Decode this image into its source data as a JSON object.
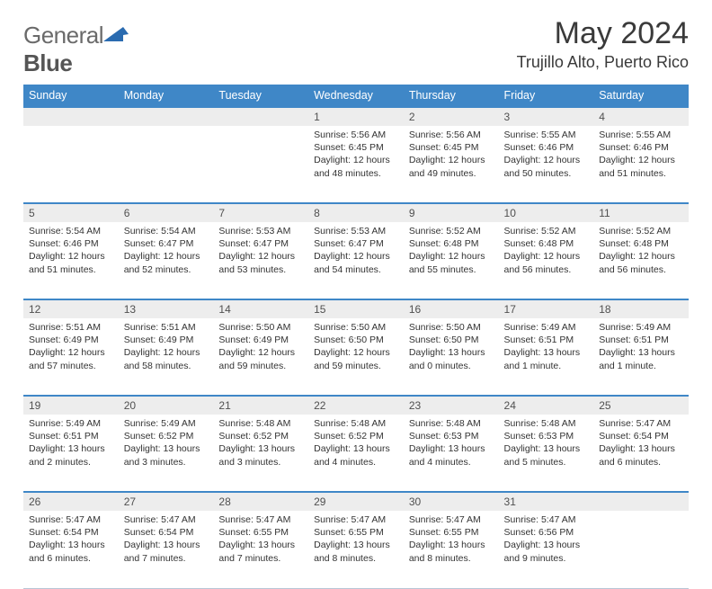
{
  "brand": {
    "word1": "General",
    "word2": "Blue"
  },
  "title": "May 2024",
  "location": "Trujillo Alto, Puerto Rico",
  "colors": {
    "header_bg": "#3f87c7",
    "daynum_bg": "#ededed",
    "rule": "#3f87c7",
    "logo_tri": "#2a6bb0",
    "text": "#333333",
    "bg": "#ffffff"
  },
  "typography": {
    "title_fontsize": 34,
    "location_fontsize": 18,
    "weekday_fontsize": 12.5,
    "cell_fontsize": 10.5,
    "daynum_fontsize": 12
  },
  "weekdays": [
    "Sunday",
    "Monday",
    "Tuesday",
    "Wednesday",
    "Thursday",
    "Friday",
    "Saturday"
  ],
  "weeks": [
    [
      null,
      null,
      null,
      {
        "n": "1",
        "sr": "5:56 AM",
        "ss": "6:45 PM",
        "dl": "12 hours and 48 minutes."
      },
      {
        "n": "2",
        "sr": "5:56 AM",
        "ss": "6:45 PM",
        "dl": "12 hours and 49 minutes."
      },
      {
        "n": "3",
        "sr": "5:55 AM",
        "ss": "6:46 PM",
        "dl": "12 hours and 50 minutes."
      },
      {
        "n": "4",
        "sr": "5:55 AM",
        "ss": "6:46 PM",
        "dl": "12 hours and 51 minutes."
      }
    ],
    [
      {
        "n": "5",
        "sr": "5:54 AM",
        "ss": "6:46 PM",
        "dl": "12 hours and 51 minutes."
      },
      {
        "n": "6",
        "sr": "5:54 AM",
        "ss": "6:47 PM",
        "dl": "12 hours and 52 minutes."
      },
      {
        "n": "7",
        "sr": "5:53 AM",
        "ss": "6:47 PM",
        "dl": "12 hours and 53 minutes."
      },
      {
        "n": "8",
        "sr": "5:53 AM",
        "ss": "6:47 PM",
        "dl": "12 hours and 54 minutes."
      },
      {
        "n": "9",
        "sr": "5:52 AM",
        "ss": "6:48 PM",
        "dl": "12 hours and 55 minutes."
      },
      {
        "n": "10",
        "sr": "5:52 AM",
        "ss": "6:48 PM",
        "dl": "12 hours and 56 minutes."
      },
      {
        "n": "11",
        "sr": "5:52 AM",
        "ss": "6:48 PM",
        "dl": "12 hours and 56 minutes."
      }
    ],
    [
      {
        "n": "12",
        "sr": "5:51 AM",
        "ss": "6:49 PM",
        "dl": "12 hours and 57 minutes."
      },
      {
        "n": "13",
        "sr": "5:51 AM",
        "ss": "6:49 PM",
        "dl": "12 hours and 58 minutes."
      },
      {
        "n": "14",
        "sr": "5:50 AM",
        "ss": "6:49 PM",
        "dl": "12 hours and 59 minutes."
      },
      {
        "n": "15",
        "sr": "5:50 AM",
        "ss": "6:50 PM",
        "dl": "12 hours and 59 minutes."
      },
      {
        "n": "16",
        "sr": "5:50 AM",
        "ss": "6:50 PM",
        "dl": "13 hours and 0 minutes."
      },
      {
        "n": "17",
        "sr": "5:49 AM",
        "ss": "6:51 PM",
        "dl": "13 hours and 1 minute."
      },
      {
        "n": "18",
        "sr": "5:49 AM",
        "ss": "6:51 PM",
        "dl": "13 hours and 1 minute."
      }
    ],
    [
      {
        "n": "19",
        "sr": "5:49 AM",
        "ss": "6:51 PM",
        "dl": "13 hours and 2 minutes."
      },
      {
        "n": "20",
        "sr": "5:49 AM",
        "ss": "6:52 PM",
        "dl": "13 hours and 3 minutes."
      },
      {
        "n": "21",
        "sr": "5:48 AM",
        "ss": "6:52 PM",
        "dl": "13 hours and 3 minutes."
      },
      {
        "n": "22",
        "sr": "5:48 AM",
        "ss": "6:52 PM",
        "dl": "13 hours and 4 minutes."
      },
      {
        "n": "23",
        "sr": "5:48 AM",
        "ss": "6:53 PM",
        "dl": "13 hours and 4 minutes."
      },
      {
        "n": "24",
        "sr": "5:48 AM",
        "ss": "6:53 PM",
        "dl": "13 hours and 5 minutes."
      },
      {
        "n": "25",
        "sr": "5:47 AM",
        "ss": "6:54 PM",
        "dl": "13 hours and 6 minutes."
      }
    ],
    [
      {
        "n": "26",
        "sr": "5:47 AM",
        "ss": "6:54 PM",
        "dl": "13 hours and 6 minutes."
      },
      {
        "n": "27",
        "sr": "5:47 AM",
        "ss": "6:54 PM",
        "dl": "13 hours and 7 minutes."
      },
      {
        "n": "28",
        "sr": "5:47 AM",
        "ss": "6:55 PM",
        "dl": "13 hours and 7 minutes."
      },
      {
        "n": "29",
        "sr": "5:47 AM",
        "ss": "6:55 PM",
        "dl": "13 hours and 8 minutes."
      },
      {
        "n": "30",
        "sr": "5:47 AM",
        "ss": "6:55 PM",
        "dl": "13 hours and 8 minutes."
      },
      {
        "n": "31",
        "sr": "5:47 AM",
        "ss": "6:56 PM",
        "dl": "13 hours and 9 minutes."
      },
      null
    ]
  ],
  "labels": {
    "sunrise": "Sunrise:",
    "sunset": "Sunset:",
    "daylight": "Daylight:"
  }
}
